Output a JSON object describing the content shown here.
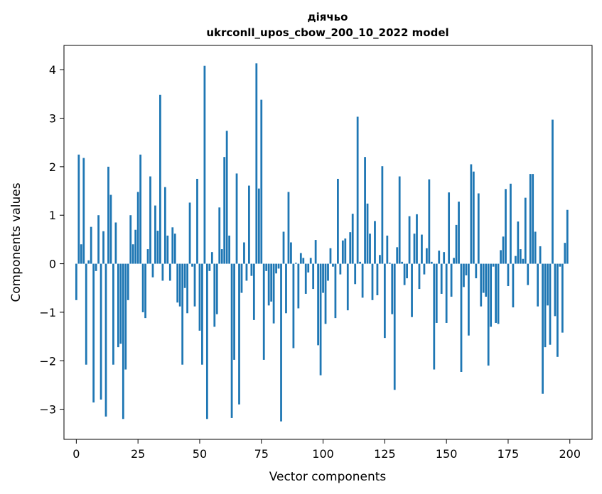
{
  "chart_data": {
    "type": "bar",
    "title": "діячьо",
    "subtitle": "ukrconll_upos_cbow_200_10_2022 model",
    "xlabel": "Vector components",
    "ylabel": "Components values",
    "xlim": [
      -5,
      209
    ],
    "ylim": [
      -3.62,
      4.5
    ],
    "xticks": [
      0,
      25,
      50,
      75,
      100,
      125,
      150,
      175,
      200
    ],
    "yticks": [
      -3,
      -2,
      -1,
      0,
      1,
      2,
      3,
      4
    ],
    "ytick_labels": [
      "−3",
      "−2",
      "−1",
      "0",
      "1",
      "2",
      "3",
      "4"
    ],
    "grid": false,
    "bar_color": "#1f77b4",
    "values": [
      -0.75,
      2.25,
      0.4,
      2.18,
      -2.08,
      0.07,
      0.76,
      -2.86,
      -0.15,
      1.0,
      -2.8,
      0.67,
      -3.15,
      2.0,
      1.42,
      -2.08,
      0.85,
      -1.72,
      -1.65,
      -3.2,
      -2.18,
      -0.75,
      1.0,
      0.4,
      0.7,
      1.48,
      2.25,
      -1.0,
      -1.12,
      0.3,
      1.8,
      -0.28,
      1.2,
      0.68,
      3.48,
      -0.35,
      1.58,
      0.58,
      -0.35,
      0.75,
      0.62,
      -0.8,
      -0.88,
      -2.08,
      -0.5,
      -1.02,
      1.26,
      -0.06,
      -0.88,
      1.75,
      -1.38,
      -2.08,
      4.08,
      -3.2,
      -0.15,
      0.24,
      -1.3,
      -1.04,
      1.16,
      0.3,
      2.2,
      2.74,
      0.58,
      -3.18,
      -1.98,
      1.86,
      -2.9,
      -0.6,
      0.44,
      -0.35,
      1.61,
      -0.25,
      -1.16,
      4.13,
      1.55,
      3.38,
      -1.98,
      -0.15,
      -0.86,
      -0.78,
      -1.23,
      -0.2,
      -0.1,
      -3.25,
      0.66,
      -1.02,
      1.48,
      0.44,
      -1.74,
      0.02,
      -0.92,
      0.22,
      0.12,
      -0.62,
      -0.18,
      0.12,
      -0.52,
      0.49,
      -1.68,
      -2.3,
      -0.6,
      -1.24,
      -0.35,
      0.32,
      -0.06,
      -1.12,
      1.75,
      -0.22,
      0.48,
      0.52,
      -0.96,
      0.65,
      1.03,
      -0.42,
      3.03,
      0.04,
      -0.7,
      2.2,
      1.24,
      0.62,
      -0.75,
      0.88,
      -0.65,
      0.18,
      2.01,
      -1.53,
      0.58,
      0.02,
      -1.04,
      -2.6,
      0.34,
      1.8,
      0.04,
      -0.44,
      -0.3,
      0.98,
      -1.1,
      0.62,
      1.02,
      -0.52,
      0.6,
      -0.22,
      0.32,
      1.74,
      0.04,
      -2.18,
      -1.22,
      0.27,
      -0.62,
      0.24,
      -1.22,
      1.47,
      -0.68,
      0.12,
      0.8,
      1.28,
      -2.23,
      -0.48,
      -0.24,
      -1.48,
      2.05,
      1.9,
      -0.3,
      1.45,
      -0.88,
      -0.6,
      -0.68,
      -2.1,
      -1.3,
      -0.06,
      -1.22,
      -1.24,
      0.28,
      0.56,
      1.54,
      -0.46,
      1.65,
      -0.9,
      0.16,
      0.87,
      0.3,
      0.1,
      1.36,
      -0.44,
      1.85,
      1.85,
      0.66,
      -0.88,
      0.36,
      -2.68,
      -1.72,
      -0.86,
      -1.67,
      2.97,
      -1.08,
      -1.92,
      -0.06,
      -1.42,
      0.43,
      1.11
    ]
  }
}
